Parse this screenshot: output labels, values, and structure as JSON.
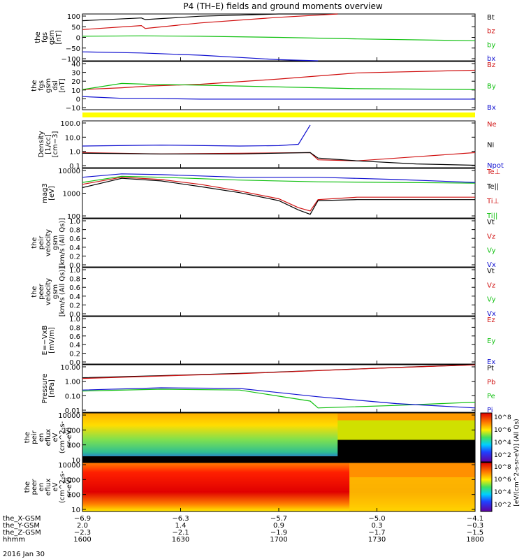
{
  "title": "P4 (TH–E) fields and ground moments overview",
  "date_label": "2016 Jan 30",
  "colors": {
    "black": "#000000",
    "red": "#d01010",
    "green": "#10c010",
    "blue": "#1010d0",
    "yellow": "#ffff00"
  },
  "panels": [
    {
      "id": "fgs-gsm",
      "ylabel": [
        "the",
        "fgs",
        "gsm",
        "[nT]"
      ],
      "ticks": [
        "100",
        "50",
        "0",
        "−50",
        "−100"
      ],
      "legend": [
        {
          "text": "Bt",
          "color": "black"
        },
        {
          "text": "bz",
          "color": "red"
        },
        {
          "text": "by",
          "color": "green"
        },
        {
          "text": "bx",
          "color": "blue"
        }
      ]
    },
    {
      "id": "fgs-dsl",
      "ylabel": [
        "the",
        "fgs",
        "gsm",
        "dsl",
        "[nT]"
      ],
      "ticks": [
        "40",
        "30",
        "20",
        "10",
        "0",
        "−10"
      ],
      "legend": [
        {
          "text": "Bz",
          "color": "red"
        },
        {
          "text": "By",
          "color": "green"
        },
        {
          "text": "Bx",
          "color": "blue"
        }
      ]
    },
    {
      "id": "density",
      "ylabel": [
        "Density",
        "[1/cc]",
        "[cm−3]"
      ],
      "ticks": [
        "100.0",
        "10.0",
        "1.0",
        "0.1"
      ],
      "legend": [
        {
          "text": "Ne",
          "color": "red"
        },
        {
          "text": "Ni",
          "color": "black"
        },
        {
          "text": "Npot",
          "color": "blue"
        }
      ]
    },
    {
      "id": "temperature",
      "ylabel": [
        "mag3",
        "[eV]"
      ],
      "ticks": [
        "10000",
        "1000",
        "100"
      ],
      "legend": [
        {
          "text": "Te⊥",
          "color": "red"
        },
        {
          "text": "Te||",
          "color": "black"
        },
        {
          "text": "Ti⊥",
          "color": "red"
        },
        {
          "text": "Ti||",
          "color": "green"
        }
      ]
    },
    {
      "id": "peir-velocity",
      "ylabel": [
        "the",
        "peir",
        "velocity",
        "gsm",
        "[km/s (All Qs)]"
      ],
      "ticks": [
        "1.0",
        "0.8",
        "0.6",
        "0.4",
        "0.2",
        "0.0"
      ],
      "legend": [
        {
          "text": "Vt",
          "color": "black"
        },
        {
          "text": "Vz",
          "color": "red"
        },
        {
          "text": "Vy",
          "color": "green"
        },
        {
          "text": "Vx",
          "color": "blue"
        }
      ]
    },
    {
      "id": "peer-velocity",
      "ylabel": [
        "the",
        "peer",
        "velocity",
        "gsm",
        "[km/s (All Qs)]"
      ],
      "ticks": [
        "1.0",
        "0.8",
        "0.6",
        "0.4",
        "0.2",
        "0.0"
      ],
      "legend": [
        {
          "text": "Vt",
          "color": "black"
        },
        {
          "text": "Vz",
          "color": "red"
        },
        {
          "text": "Vy",
          "color": "green"
        },
        {
          "text": "Vx",
          "color": "blue"
        }
      ]
    },
    {
      "id": "efield",
      "ylabel": [
        "E=−VxB",
        "[mV/m]"
      ],
      "ticks": [
        "1.0",
        "0.8",
        "0.6",
        "0.4",
        "0.2",
        "0.0"
      ],
      "legend": [
        {
          "text": "Ez",
          "color": "red"
        },
        {
          "text": "Ey",
          "color": "green"
        },
        {
          "text": "Ex",
          "color": "blue"
        }
      ]
    },
    {
      "id": "pressure",
      "ylabel": [
        "Pressure",
        "[nPa]"
      ],
      "ticks": [
        "10.00",
        "1.00",
        "0.10",
        "0.01"
      ],
      "legend": [
        {
          "text": "Pt",
          "color": "black"
        },
        {
          "text": "Pb",
          "color": "red"
        },
        {
          "text": "Pe",
          "color": "green"
        },
        {
          "text": "Pi",
          "color": "blue"
        }
      ]
    },
    {
      "id": "peir-eflux",
      "ylabel": [
        "the",
        "peir",
        "en",
        "eflux",
        "eV",
        "(cm^2-s-",
        "sr-eV)"
      ],
      "ticks": [
        "10000",
        "1000",
        "100",
        "10"
      ],
      "legend": []
    },
    {
      "id": "peer-eflux",
      "ylabel": [
        "the",
        "peer",
        "en",
        "eflux",
        "eV",
        "(cm^2-s-",
        "sr-eV)"
      ],
      "ticks": [
        "10000",
        "1000",
        "100",
        "10"
      ],
      "legend": []
    }
  ],
  "colorbar": {
    "title": "[eV/(cm^2-s-sr-eV)] (All Qs)",
    "upper_ticks": [
      "10^8",
      "10^6",
      "10^4",
      "10^2"
    ],
    "lower_ticks": [
      "10^8",
      "10^6",
      "10^4",
      "10^2"
    ]
  },
  "xaxis": {
    "row_labels": [
      "the_X-GSM",
      "the_Y-GSM",
      "the_Z-GSM",
      "hhmm"
    ],
    "columns": [
      {
        "values": [
          "−6.9",
          "2.0",
          "−2.3",
          "1600"
        ]
      },
      {
        "values": [
          "−6.3",
          "1.4",
          "−2.1",
          "1630"
        ]
      },
      {
        "values": [
          "−5.7",
          "0.9",
          "−1.9",
          "1700"
        ]
      },
      {
        "values": [
          "−5.0",
          "0.3",
          "−1.7",
          "1730"
        ]
      },
      {
        "values": [
          "−4.1",
          "−0.3",
          "−1.5",
          "1800"
        ]
      }
    ]
  },
  "chart_data": {
    "type": "line",
    "title": "P4 (TH–E) fields and ground moments overview",
    "x": {
      "label": "hhmm",
      "ticks": [
        "1600",
        "1630",
        "1700",
        "1730",
        "1800"
      ]
    },
    "panels": [
      {
        "name": "fgs gsm [nT]",
        "ylim": [
          -100,
          110
        ],
        "series": [
          {
            "name": "Bt",
            "x": [
              0,
              0.15,
              0.16,
              0.3,
              0.5,
              0.65
            ],
            "y": [
              80,
              92,
              85,
              100,
              110,
              115
            ]
          },
          {
            "name": "bz",
            "x": [
              0,
              0.15,
              0.16,
              0.3,
              0.5,
              0.65
            ],
            "y": [
              40,
              58,
              45,
              70,
              95,
              112
            ]
          },
          {
            "name": "by",
            "x": [
              0,
              0.15,
              0.3,
              0.5,
              0.7,
              1.0
            ],
            "y": [
              10,
              12,
              10,
              5,
              -2,
              -10
            ]
          },
          {
            "name": "bx",
            "x": [
              0,
              0.15,
              0.3,
              0.5,
              0.6
            ],
            "y": [
              -60,
              -65,
              -75,
              -95,
              -104
            ]
          }
        ]
      },
      {
        "name": "fgs dsl [nT]",
        "ylim": [
          -15,
          40
        ],
        "series": [
          {
            "name": "Bz",
            "x": [
              0,
              0.1,
              0.17,
              0.3,
              0.5,
              0.7,
              1.0
            ],
            "y": [
              8,
              10,
              12,
              14,
              20,
              27,
              30
            ]
          },
          {
            "name": "By",
            "x": [
              0,
              0.1,
              0.17,
              0.3,
              0.5,
              0.7,
              1.0
            ],
            "y": [
              8,
              15,
              14,
              13,
              11,
              9,
              8
            ]
          },
          {
            "name": "Bx",
            "x": [
              0,
              0.1,
              0.17,
              0.3,
              0.5,
              0.7,
              1.0
            ],
            "y": [
              0,
              -2,
              -2,
              -3,
              -3,
              -3,
              -3
            ]
          }
        ]
      },
      {
        "name": "Density [1/cc]",
        "ylim": [
          0.08,
          200
        ],
        "log": true,
        "series": [
          {
            "name": "Ne",
            "x": [
              0,
              0.2,
              0.4,
              0.58,
              0.6,
              0.7,
              0.85,
              1.0
            ],
            "y": [
              1.0,
              0.8,
              0.9,
              1.0,
              0.3,
              0.25,
              0.5,
              1.0
            ]
          },
          {
            "name": "Ni",
            "x": [
              0,
              0.2,
              0.4,
              0.58,
              0.6,
              0.7,
              0.85,
              1.0
            ],
            "y": [
              0.9,
              0.8,
              0.8,
              1.0,
              0.4,
              0.25,
              0.15,
              0.12
            ]
          },
          {
            "name": "Npot",
            "x": [
              0,
              0.2,
              0.4,
              0.5,
              0.55,
              0.58
            ],
            "y": [
              3,
              3.5,
              3,
              3.2,
              4,
              100
            ]
          }
        ]
      },
      {
        "name": "mag3 [eV]",
        "ylim": [
          90,
          12000
        ],
        "log": true,
        "series": [
          {
            "name": "Te⊥",
            "x": [
              0,
              0.1,
              0.2,
              0.3,
              0.4,
              0.5,
              0.55,
              0.58,
              0.6,
              0.7,
              0.85,
              1.0
            ],
            "y": [
              2500,
              5000,
              4000,
              2500,
              1300,
              600,
              250,
              180,
              550,
              700,
              700,
              700
            ]
          },
          {
            "name": "Te||",
            "x": [
              0,
              0.1,
              0.2,
              0.3,
              0.4,
              0.5,
              0.55,
              0.58,
              0.6,
              0.7,
              0.85,
              1.0
            ],
            "y": [
              1800,
              4500,
              3500,
              2000,
              1100,
              500,
              200,
              130,
              500,
              550,
              550,
              550
            ]
          },
          {
            "name": "Ti||",
            "x": [
              0,
              0.1,
              0.2,
              0.4,
              0.6,
              0.8,
              1.0
            ],
            "y": [
              3000,
              5500,
              5000,
              3800,
              3200,
              3000,
              2800
            ]
          },
          {
            "name": "Ti⊥",
            "x": [
              0,
              0.1,
              0.2,
              0.4,
              0.6,
              0.8,
              1.0
            ],
            "y": [
              5000,
              7000,
              6500,
              5000,
              5000,
              4000,
              3000
            ]
          }
        ]
      },
      {
        "name": "Pressure [nPa]",
        "ylim": [
          0.01,
          20
        ],
        "log": true,
        "series": [
          {
            "name": "Pt",
            "x": [
              0,
              0.2,
              0.4,
              0.6,
              0.8,
              1.0
            ],
            "y": [
              2.5,
              3.5,
              5,
              8,
              13,
              20
            ]
          },
          {
            "name": "Pb",
            "x": [
              0,
              0.2,
              0.4,
              0.6,
              0.8,
              1.0
            ],
            "y": [
              2.2,
              3.3,
              4.8,
              7.8,
              12.8,
              19.5
            ]
          },
          {
            "name": "Pe",
            "x": [
              0,
              0.2,
              0.4,
              0.58,
              0.6,
              0.8,
              1.0
            ],
            "y": [
              0.3,
              0.4,
              0.35,
              0.06,
              0.02,
              0.03,
              0.05
            ]
          },
          {
            "name": "Pi",
            "x": [
              0,
              0.2,
              0.4,
              0.6,
              0.8,
              1.0
            ],
            "y": [
              0.35,
              0.5,
              0.45,
              0.12,
              0.04,
              0.02
            ]
          }
        ]
      }
    ]
  }
}
